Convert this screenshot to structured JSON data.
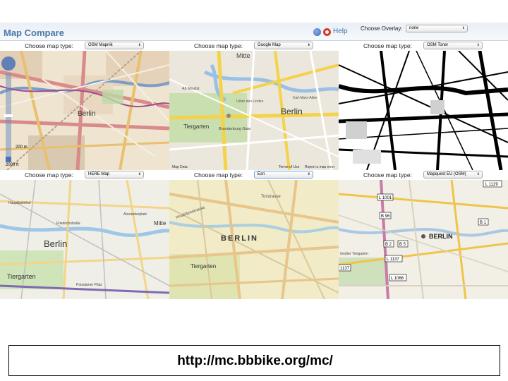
{
  "app": {
    "title": "Map Compare",
    "help_link": "Help",
    "overlay_label": "Choose Overlay:",
    "overlay_value": "none"
  },
  "cells": [
    {
      "label": "Choose map type:",
      "selected": "OSM Mapnik",
      "map_labels": [
        "Berlin"
      ],
      "scale_text": "200 m",
      "scale_text2": "2000 ft"
    },
    {
      "label": "Choose map type:",
      "selected": "Google Map",
      "map_labels": [
        "Mitte",
        "Berlin",
        "Tiergarten",
        "Brandenburg Gate",
        "Alt Moabit",
        "Unter den Linden",
        "Karl-Marx-Allee",
        "Map Data",
        "Terms of Use",
        "Report a map error"
      ]
    },
    {
      "label": "Choose map type:",
      "selected": "OSM Toner",
      "map_labels": []
    },
    {
      "label": "Choose map type:",
      "selected": "HERE Map",
      "map_labels": [
        "Berlin",
        "Tiergarten",
        "Mitte",
        "Alexanderplatz",
        "Hauptbahnhof",
        "Friedrichstraße",
        "Potsdamer Platz"
      ]
    },
    {
      "label": "Choose map type:",
      "selected": "Esri",
      "map_labels": [
        "BERLIN",
        "Tiergarten",
        "Torstrasse",
        "Invalidenstrasse"
      ]
    },
    {
      "label": "Choose map type:",
      "selected": "Mapquest EU (OSM)",
      "map_labels": [
        "BERLIN",
        "L 1129",
        "L 1001",
        "B 96",
        "B 2",
        "B 5",
        "B 1",
        "L 1137",
        "L 1066",
        "1137",
        "Großer Tiergarten"
      ]
    }
  ],
  "footer": {
    "url": "http://mc.bbbike.org/mc/"
  },
  "colors": {
    "title_blue": "#4b79a8",
    "help_red": "#d23b2f"
  }
}
